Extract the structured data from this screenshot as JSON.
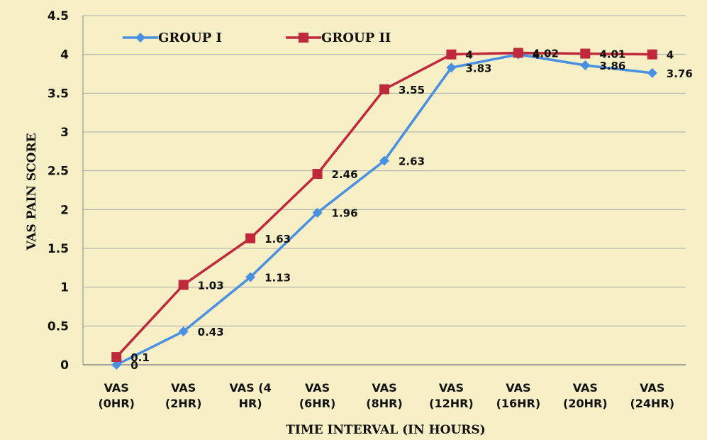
{
  "chart_data": {
    "type": "line",
    "title": "",
    "xlabel": "TIME INTERVAL (IN HOURS)",
    "ylabel": "VAS PAIN SCORE",
    "ylim": [
      0,
      4.5
    ],
    "yticks": [
      "0",
      "0.5",
      "1",
      "1.5",
      "2",
      "2.5",
      "3",
      "3.5",
      "4",
      "4.5"
    ],
    "grid": true,
    "legend_position": "top-left",
    "categories": [
      [
        "VAS",
        "(0HR)"
      ],
      [
        "VAS",
        "(2HR)"
      ],
      [
        "VAS (4",
        "HR)"
      ],
      [
        "VAS",
        "(6HR)"
      ],
      [
        "VAS",
        "(8HR)"
      ],
      [
        "VAS",
        "(12HR)"
      ],
      [
        "VAS",
        "(16HR)"
      ],
      [
        "VAS",
        "(20HR)"
      ],
      [
        "VAS",
        "(24HR)"
      ]
    ],
    "series": [
      {
        "name": "GROUP I",
        "color": "#4a90e2",
        "marker": "diamond",
        "values": [
          0,
          0.43,
          1.13,
          1.96,
          2.63,
          3.83,
          4,
          3.86,
          3.76
        ],
        "labels": [
          "0",
          "0.43",
          "1.13",
          "1.96",
          "2.63",
          "3.83",
          "4",
          "3.86",
          "3.76"
        ]
      },
      {
        "name": "GROUP II",
        "color": "#c0283c",
        "marker": "square",
        "values": [
          0.1,
          1.03,
          1.63,
          2.46,
          3.55,
          4,
          4.02,
          4.01,
          4
        ],
        "labels": [
          "0.1",
          "1.03",
          "1.63",
          "2.46",
          "3.55",
          "4",
          "4.02",
          "4.01",
          "4"
        ]
      }
    ]
  }
}
